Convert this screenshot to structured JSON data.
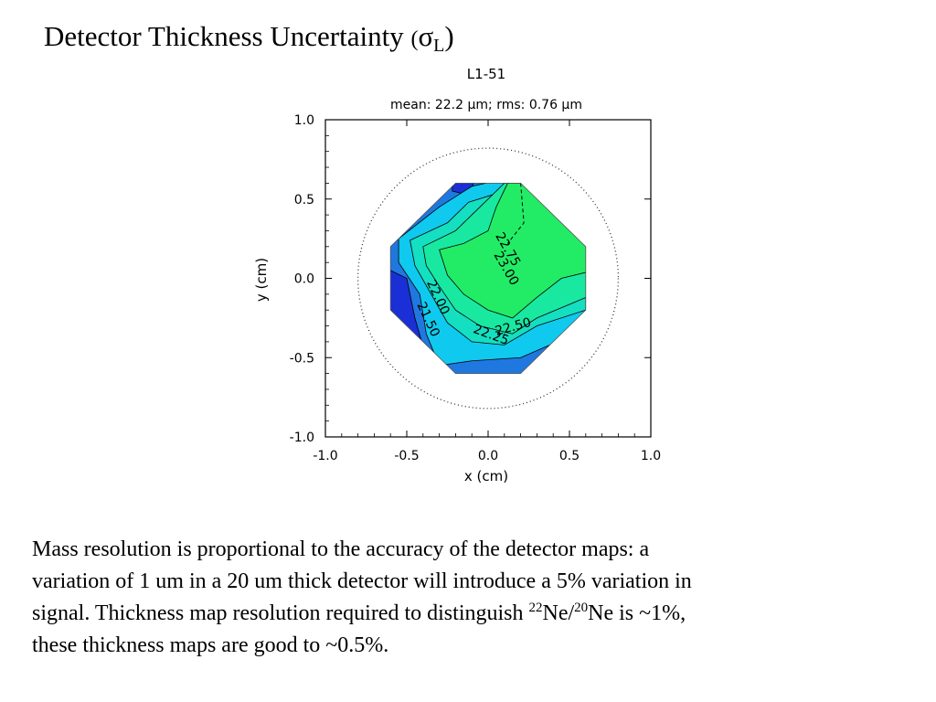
{
  "slide": {
    "title_text": "Detector Thickness Uncertainty ",
    "title_open": "(",
    "title_sigma": "σ",
    "title_sub": "L",
    "title_close": ")"
  },
  "body": {
    "line1": "Mass resolution is proportional to the accuracy of the detector maps:  a",
    "line2": "variation of 1 um in a 20 um thick detector will introduce a 5% variation in",
    "line3_a": "signal. Thickness map resolution required to distinguish ",
    "sup1": "22",
    "line3_b": "Ne/",
    "sup2": "20",
    "line3_c": "Ne is ~1%,",
    "line4": "these thickness maps are good to ~0.5%."
  },
  "colors": {
    "axis": "#000000",
    "level_lt_21_5": "#1a2fd6",
    "level_21_5_22_0": "#1f78e0",
    "level_22_0_22_25": "#10c9ee",
    "level_22_25_22_5": "#14dfc0",
    "level_22_5_22_75": "#19e8a0",
    "level_gt_22_75": "#22ec66"
  },
  "chart_data": {
    "type": "heatmap",
    "plot_id": "L1-51",
    "subtitle": "mean: 22.2 µm;   rms:  0.76 µm",
    "xlabel": "x (cm)",
    "ylabel": "y (cm)",
    "xlim": [
      -1.0,
      1.0
    ],
    "ylim": [
      -1.0,
      1.0
    ],
    "x_ticks": [
      "-1.0",
      "-0.5",
      "0.0",
      "0.5",
      "1.0"
    ],
    "y_ticks": [
      "1.0",
      "0.5",
      "0.0",
      "-0.5",
      "-1.0"
    ],
    "x_tick_values": [
      -1.0,
      -0.5,
      0.0,
      0.5,
      1.0
    ],
    "y_tick_values": [
      1.0,
      0.5,
      0.0,
      -0.5,
      -1.0
    ],
    "grid": false,
    "contour_labels": [
      {
        "text": "22.75",
        "x": 0.1,
        "y": 0.17
      },
      {
        "text": "23.00",
        "x": 0.09,
        "y": 0.05
      },
      {
        "text": "22.00",
        "x": -0.33,
        "y": -0.13
      },
      {
        "text": "21.50",
        "x": -0.39,
        "y": -0.27
      },
      {
        "text": "22.25",
        "x": 0.01,
        "y": -0.38
      },
      {
        "text": "22.50",
        "x": 0.16,
        "y": -0.33
      }
    ],
    "detector_edge": {
      "shape": "octagon",
      "corners": [
        [
          -0.2,
          0.6
        ],
        [
          0.2,
          0.6
        ],
        [
          0.6,
          0.2
        ],
        [
          0.6,
          -0.2
        ],
        [
          0.2,
          -0.6
        ],
        [
          -0.2,
          -0.6
        ],
        [
          -0.6,
          -0.2
        ],
        [
          -0.6,
          0.2
        ]
      ]
    },
    "boundary_circle_radius": 0.8
  }
}
